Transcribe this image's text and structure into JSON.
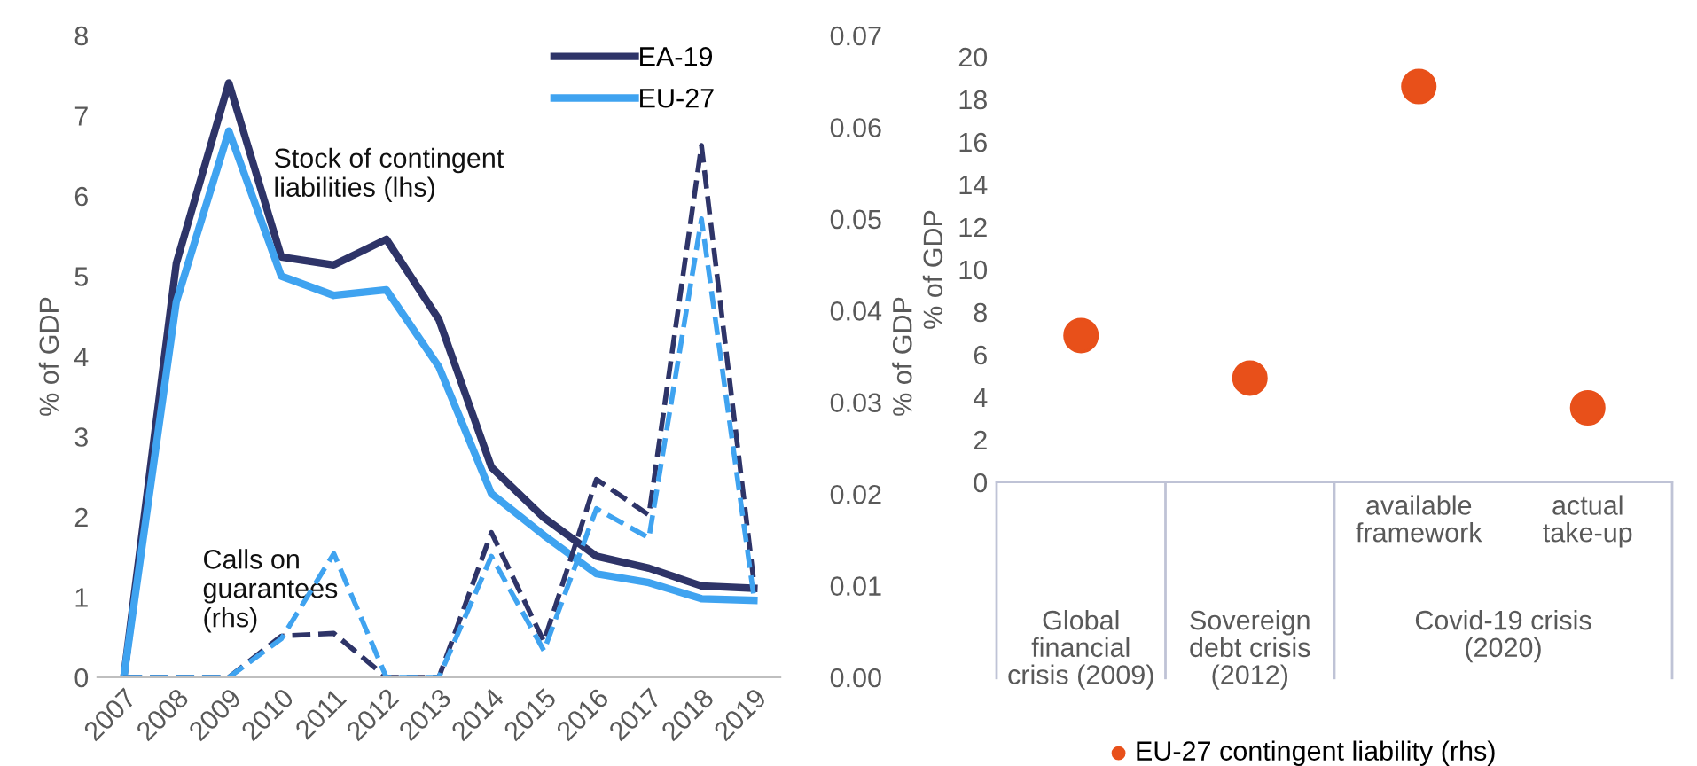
{
  "chart_data": [
    {
      "type": "line",
      "categories": [
        "2007",
        "2008",
        "2009",
        "2010",
        "2011",
        "2012",
        "2013",
        "2014",
        "2015",
        "2016",
        "2017",
        "2018",
        "2019"
      ],
      "ylabel": "% of GDP",
      "y2label": "% of GDP",
      "ylim": [
        0,
        8
      ],
      "yticks": [
        0,
        1,
        2,
        3,
        4,
        5,
        6,
        7,
        8
      ],
      "y2lim": [
        0,
        0.07
      ],
      "y2ticks": [
        {
          "value": 0,
          "label": "0.00"
        },
        {
          "value": 0.01,
          "label": "0.01"
        },
        {
          "value": 0.02,
          "label": "0.02"
        },
        {
          "value": 0.03,
          "label": "0.03"
        },
        {
          "value": 0.04,
          "label": "0.04"
        },
        {
          "value": 0.05,
          "label": "0.05"
        },
        {
          "value": 0.06,
          "label": "0.06"
        },
        {
          "value": 0.07,
          "label": "0.07"
        }
      ],
      "series": [
        {
          "name": "EA-19",
          "color": "#2e3468",
          "line_style": "solid",
          "values": [
            0,
            5.16,
            7.41,
            5.24,
            5.14,
            5.46,
            4.46,
            2.62,
            1.99,
            1.51,
            1.36,
            1.14,
            1.11
          ]
        },
        {
          "name": "EU-27",
          "color": "#3fa3f0",
          "line_style": "solid",
          "values": [
            0,
            4.68,
            6.81,
            5.0,
            4.76,
            4.83,
            3.87,
            2.29,
            1.77,
            1.29,
            1.18,
            0.98,
            0.96
          ]
        },
        {
          "color": "#2e3468",
          "line_style": "dashed",
          "axis": "y2",
          "values": [
            0,
            0,
            0,
            0.0045,
            0.0048,
            0,
            0,
            0.0158,
            0.0039,
            0.0216,
            0.0177,
            0.058,
            0.0103
          ]
        },
        {
          "color": "#3fa3f0",
          "line_style": "dashed",
          "axis": "y2",
          "values": [
            0,
            0,
            0,
            0.0042,
            0.0135,
            0,
            0,
            0.0132,
            0.0029,
            0.0184,
            0.0152,
            0.05,
            0.0087
          ]
        }
      ],
      "annotations": [
        "Stock of contingent\nliabilities (lhs)",
        "Calls on\nguarantees\n(rhs)"
      ],
      "legend": "top right",
      "grid": false
    },
    {
      "type": "scatter",
      "categories": [
        "Global\nfinancial\ncrisis (2009)",
        "Sovereign\ndebt crisis\n(2012)",
        "available\nframework",
        "actual\ntake-up"
      ],
      "ylabel": "% of GDP",
      "ylim": [
        0,
        20
      ],
      "yticks": [
        0,
        2,
        4,
        6,
        8,
        10,
        12,
        14,
        16,
        18,
        20
      ],
      "series": [
        {
          "name": "EU-27 contingent liability (rhs)",
          "color": "#e8501a",
          "values": [
            6.9,
            4.9,
            18.6,
            3.5
          ]
        }
      ],
      "annotations": [
        "Covid-19 crisis\n(2020)"
      ],
      "marker": "circle",
      "legend": "bottom",
      "grid": false
    }
  ]
}
